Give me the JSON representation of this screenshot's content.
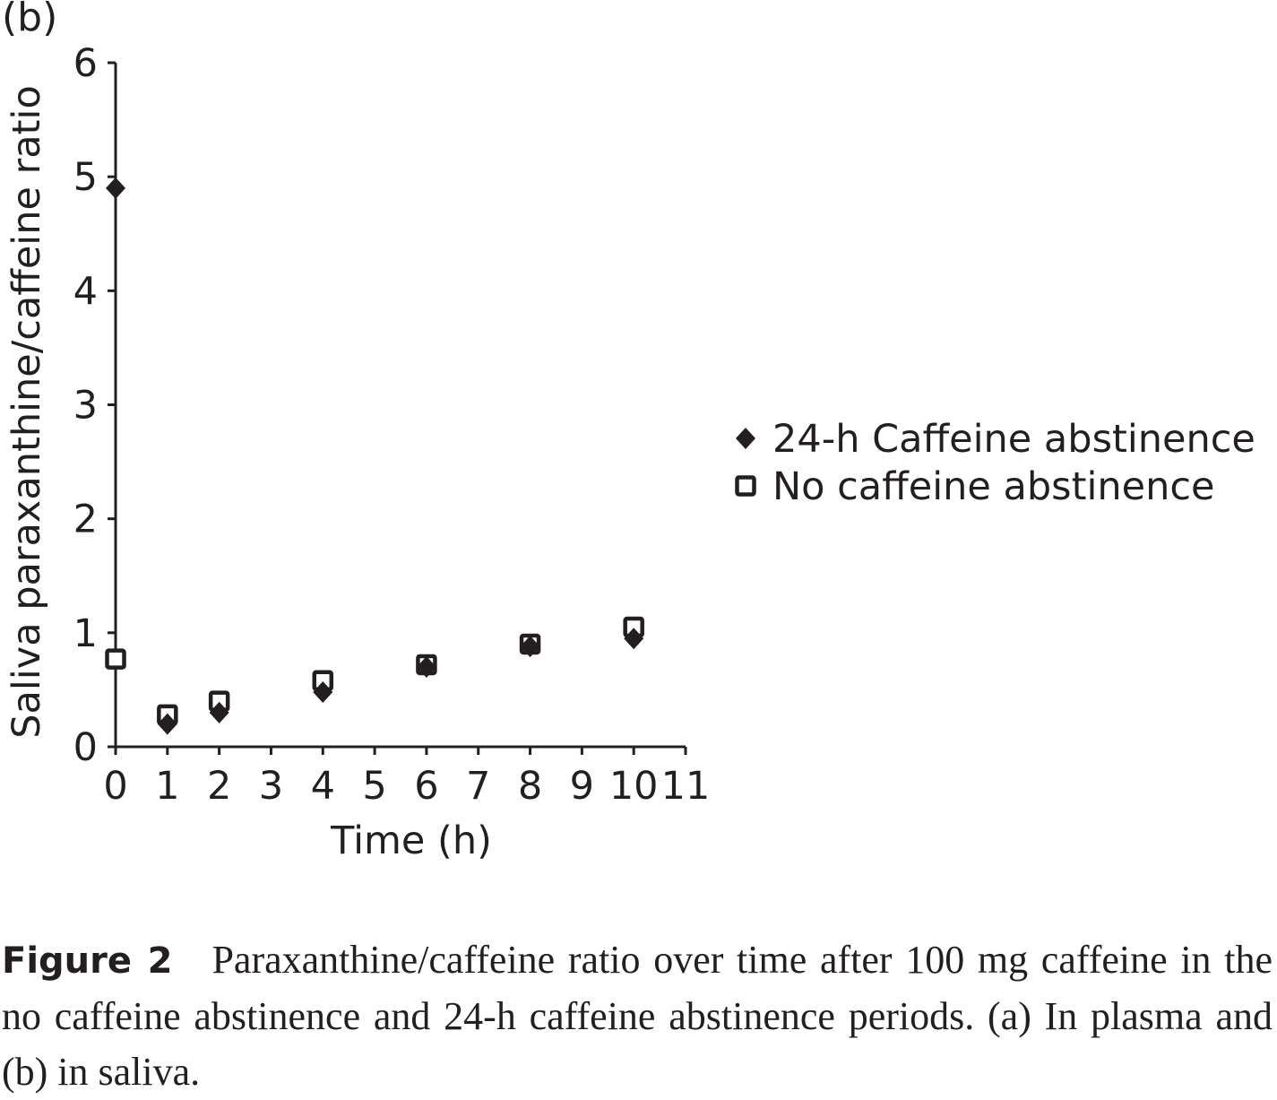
{
  "panel_label": "(b)",
  "caption": {
    "label": "Figure 2",
    "text": "Paraxanthine/caffeine ratio over time after 100 mg caffeine in the no caffeine abstinence and 24-h caffeine abstinence periods. (a) In plasma and (b) in saliva."
  },
  "chart_data": {
    "type": "scatter",
    "xlabel": "Time (h)",
    "ylabel": "Saliva paraxanthine/caffeine ratio",
    "xlim": [
      0,
      11
    ],
    "ylim": [
      0,
      6
    ],
    "x_ticks": [
      "0",
      "1",
      "2",
      "3",
      "4",
      "5",
      "6",
      "7",
      "8",
      "9",
      "10",
      "11"
    ],
    "y_ticks": [
      "0",
      "1",
      "2",
      "3",
      "4",
      "5",
      "6"
    ],
    "grid": false,
    "legend_position": "right",
    "series": [
      {
        "name": "24-h Caffeine abstinence",
        "marker": "filled-diamond",
        "color": "#231f20",
        "x": [
          0,
          1,
          2,
          4,
          6,
          8,
          10
        ],
        "y": [
          4.9,
          0.2,
          0.3,
          0.48,
          0.7,
          0.88,
          0.95
        ]
      },
      {
        "name": "No caffeine abstinence",
        "marker": "open-square",
        "color": "#231f20",
        "x": [
          0,
          1,
          2,
          4,
          6,
          8,
          10
        ],
        "y": [
          0.77,
          0.28,
          0.4,
          0.58,
          0.72,
          0.9,
          1.05
        ]
      }
    ]
  }
}
